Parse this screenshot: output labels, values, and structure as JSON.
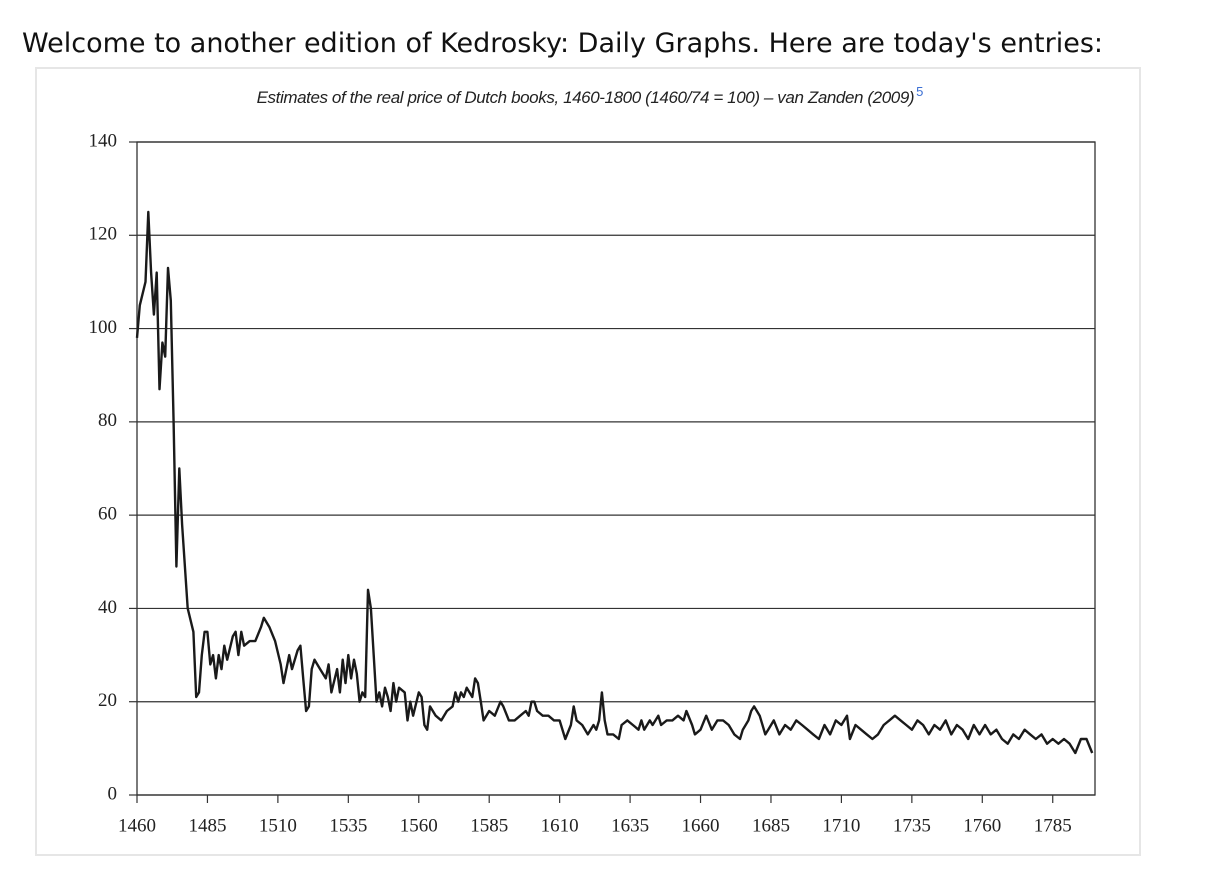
{
  "page": {
    "heading": "Welcome to another edition of Kedrosky: Daily Graphs. Here are today's entries:"
  },
  "chart_data": {
    "type": "line",
    "title": "Estimates of the real price of Dutch books, 1460-1800 (1460/74 = 100) – van Zanden (2009)",
    "footnote": "5",
    "color": "#1a1a1a",
    "grid": true,
    "xlim": [
      1460,
      1800
    ],
    "ylim": [
      0,
      140
    ],
    "xticks": [
      1460,
      1485,
      1510,
      1535,
      1560,
      1585,
      1610,
      1635,
      1660,
      1685,
      1710,
      1735,
      1760,
      1785
    ],
    "yticks": [
      0,
      20,
      40,
      60,
      80,
      100,
      120,
      140
    ],
    "x": [
      1460,
      1461,
      1463,
      1464,
      1465,
      1466,
      1467,
      1468,
      1469,
      1470,
      1471,
      1472,
      1473,
      1474,
      1475,
      1476,
      1478,
      1480,
      1481,
      1482,
      1483,
      1484,
      1485,
      1486,
      1487,
      1488,
      1489,
      1490,
      1491,
      1492,
      1494,
      1495,
      1496,
      1497,
      1498,
      1500,
      1502,
      1504,
      1505,
      1507,
      1509,
      1511,
      1512,
      1514,
      1515,
      1517,
      1518,
      1519,
      1520,
      1521,
      1522,
      1523,
      1525,
      1527,
      1528,
      1529,
      1531,
      1532,
      1533,
      1534,
      1535,
      1536,
      1537,
      1538,
      1539,
      1540,
      1541,
      1542,
      1543,
      1544,
      1545,
      1546,
      1547,
      1548,
      1549,
      1550,
      1551,
      1552,
      1553,
      1555,
      1556,
      1557,
      1558,
      1560,
      1561,
      1562,
      1563,
      1564,
      1566,
      1568,
      1570,
      1572,
      1573,
      1574,
      1575,
      1576,
      1577,
      1579,
      1580,
      1581,
      1582,
      1583,
      1585,
      1587,
      1589,
      1590,
      1592,
      1594,
      1596,
      1598,
      1599,
      1600,
      1601,
      1602,
      1604,
      1606,
      1608,
      1610,
      1612,
      1614,
      1615,
      1616,
      1618,
      1620,
      1621,
      1622,
      1623,
      1624,
      1625,
      1626,
      1627,
      1629,
      1631,
      1632,
      1634,
      1636,
      1638,
      1639,
      1640,
      1642,
      1643,
      1645,
      1646,
      1648,
      1650,
      1652,
      1654,
      1655,
      1657,
      1658,
      1660,
      1662,
      1664,
      1666,
      1668,
      1670,
      1672,
      1674,
      1675,
      1677,
      1678,
      1679,
      1681,
      1683,
      1684,
      1686,
      1688,
      1690,
      1692,
      1694,
      1696,
      1698,
      1700,
      1702,
      1704,
      1706,
      1708,
      1710,
      1712,
      1713,
      1715,
      1717,
      1719,
      1721,
      1723,
      1725,
      1727,
      1729,
      1731,
      1733,
      1735,
      1737,
      1739,
      1741,
      1743,
      1745,
      1747,
      1749,
      1751,
      1753,
      1755,
      1757,
      1759,
      1761,
      1763,
      1765,
      1767,
      1769,
      1771,
      1773,
      1775,
      1777,
      1779,
      1781,
      1783,
      1785,
      1787,
      1789,
      1791,
      1793,
      1795,
      1797,
      1799
    ],
    "values": [
      98,
      105,
      110,
      125,
      112,
      103,
      112,
      87,
      97,
      94,
      113,
      106,
      80,
      49,
      70,
      58,
      40,
      35,
      21,
      22,
      30,
      35,
      35,
      28,
      30,
      25,
      30,
      27,
      32,
      29,
      34,
      35,
      30,
      35,
      32,
      33,
      33,
      36,
      38,
      36,
      33,
      28,
      24,
      30,
      27,
      31,
      32,
      25,
      18,
      19,
      27,
      29,
      27,
      25,
      28,
      22,
      27,
      22,
      29,
      24,
      30,
      25,
      29,
      26,
      20,
      22,
      21,
      44,
      40,
      30,
      20,
      22,
      19,
      23,
      21,
      18,
      24,
      20,
      23,
      22,
      16,
      20,
      17,
      22,
      21,
      15,
      14,
      19,
      17,
      16,
      18,
      19,
      22,
      20,
      22,
      21,
      23,
      21,
      25,
      24,
      20,
      16,
      18,
      17,
      20,
      19,
      16,
      16,
      17,
      18,
      17,
      20,
      20,
      18,
      17,
      17,
      16,
      16,
      12,
      15,
      19,
      16,
      15,
      13,
      14,
      15,
      14,
      16,
      22,
      16,
      13,
      13,
      12,
      15,
      16,
      15,
      14,
      16,
      14,
      16,
      15,
      17,
      15,
      16,
      16,
      17,
      16,
      18,
      15,
      13,
      14,
      17,
      14,
      16,
      16,
      15,
      13,
      12,
      14,
      16,
      18,
      19,
      17,
      13,
      14,
      16,
      13,
      15,
      14,
      16,
      15,
      14,
      13,
      12,
      15,
      13,
      16,
      15,
      17,
      12,
      15,
      14,
      13,
      12,
      13,
      15,
      16,
      17,
      16,
      15,
      14,
      16,
      15,
      13,
      15,
      14,
      16,
      13,
      15,
      14,
      12,
      15,
      13,
      15,
      13,
      14,
      12,
      11,
      13,
      12,
      14,
      13,
      12,
      13,
      11,
      12,
      11,
      12,
      11,
      9,
      12,
      12,
      9
    ]
  }
}
